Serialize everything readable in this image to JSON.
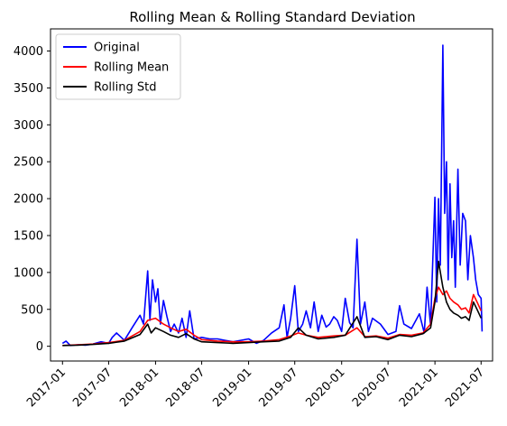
{
  "chart_data": {
    "type": "line",
    "title": "Rolling Mean & Rolling Standard Deviation",
    "xlabel": "",
    "ylabel": "",
    "x_range": [
      "2016-11-15",
      "2021-08-15"
    ],
    "ylim": [
      -200,
      4300
    ],
    "y_ticks": [
      0,
      500,
      1000,
      1500,
      2000,
      2500,
      3000,
      3500,
      4000
    ],
    "x_ticks": [
      "2017-01",
      "2017-07",
      "2018-01",
      "2018-07",
      "2019-01",
      "2019-07",
      "2020-01",
      "2020-07",
      "2021-01",
      "2021-07"
    ],
    "x_tick_label_rotation": 45,
    "grid": false,
    "legend_position": "upper-left",
    "colors": {
      "Original": "#0000ff",
      "Rolling Mean": "#ff0000",
      "Rolling Std": "#000000"
    },
    "series": [
      {
        "name": "Original",
        "x": [
          "2017-01-01",
          "2017-01-15",
          "2017-02-01",
          "2017-03-01",
          "2017-04-01",
          "2017-05-01",
          "2017-06-01",
          "2017-07-01",
          "2017-07-15",
          "2017-08-01",
          "2017-09-01",
          "2017-10-01",
          "2017-11-01",
          "2017-11-15",
          "2017-12-01",
          "2017-12-10",
          "2017-12-20",
          "2018-01-01",
          "2018-01-10",
          "2018-01-20",
          "2018-02-01",
          "2018-02-15",
          "2018-03-01",
          "2018-03-15",
          "2018-04-01",
          "2018-04-15",
          "2018-05-01",
          "2018-05-15",
          "2018-06-01",
          "2018-07-01",
          "2018-08-01",
          "2018-09-01",
          "2018-10-01",
          "2018-11-01",
          "2018-12-01",
          "2019-01-01",
          "2019-02-01",
          "2019-03-01",
          "2019-04-01",
          "2019-05-01",
          "2019-05-20",
          "2019-06-01",
          "2019-06-15",
          "2019-07-01",
          "2019-07-15",
          "2019-08-01",
          "2019-08-15",
          "2019-09-01",
          "2019-09-15",
          "2019-10-01",
          "2019-10-15",
          "2019-11-01",
          "2019-11-15",
          "2019-12-01",
          "2019-12-15",
          "2020-01-01",
          "2020-01-15",
          "2020-02-01",
          "2020-02-15",
          "2020-03-01",
          "2020-03-15",
          "2020-04-01",
          "2020-04-15",
          "2020-05-01",
          "2020-06-01",
          "2020-07-01",
          "2020-08-01",
          "2020-08-15",
          "2020-09-01",
          "2020-10-01",
          "2020-11-01",
          "2020-11-20",
          "2020-12-01",
          "2020-12-15",
          "2021-01-01",
          "2021-01-08",
          "2021-01-15",
          "2021-01-22",
          "2021-02-01",
          "2021-02-08",
          "2021-02-15",
          "2021-02-22",
          "2021-03-01",
          "2021-03-08",
          "2021-03-15",
          "2021-03-22",
          "2021-04-01",
          "2021-04-10",
          "2021-04-20",
          "2021-05-01",
          "2021-05-10",
          "2021-05-20",
          "2021-06-01",
          "2021-06-10",
          "2021-06-20",
          "2021-07-01",
          "2021-07-05"
        ],
        "values": [
          40,
          70,
          10,
          20,
          15,
          30,
          60,
          40,
          120,
          180,
          80,
          250,
          420,
          300,
          1020,
          350,
          900,
          600,
          780,
          300,
          620,
          400,
          200,
          300,
          180,
          380,
          120,
          480,
          100,
          120,
          100,
          100,
          80,
          60,
          80,
          100,
          40,
          80,
          180,
          250,
          560,
          120,
          380,
          820,
          200,
          300,
          480,
          250,
          600,
          200,
          420,
          260,
          300,
          400,
          350,
          200,
          650,
          320,
          250,
          1450,
          300,
          600,
          200,
          380,
          300,
          160,
          200,
          550,
          300,
          240,
          440,
          180,
          800,
          280,
          2020,
          600,
          2000,
          1100,
          4080,
          1800,
          2500,
          900,
          2200,
          1200,
          1700,
          800,
          2400,
          1100,
          1800,
          1700,
          900,
          1500,
          1200,
          900,
          700,
          650,
          200
        ]
      },
      {
        "name": "Rolling Mean",
        "x": [
          "2017-01-01",
          "2017-03-01",
          "2017-05-01",
          "2017-07-01",
          "2017-09-01",
          "2017-11-01",
          "2017-12-01",
          "2018-01-01",
          "2018-02-01",
          "2018-03-01",
          "2018-04-01",
          "2018-05-01",
          "2018-06-01",
          "2018-07-01",
          "2018-09-01",
          "2018-11-01",
          "2019-01-01",
          "2019-03-01",
          "2019-05-01",
          "2019-06-15",
          "2019-07-15",
          "2019-08-15",
          "2019-10-01",
          "2019-12-01",
          "2020-01-15",
          "2020-03-01",
          "2020-04-01",
          "2020-05-15",
          "2020-07-01",
          "2020-08-15",
          "2020-10-01",
          "2020-11-15",
          "2020-12-15",
          "2021-01-01",
          "2021-01-15",
          "2021-02-01",
          "2021-02-15",
          "2021-03-01",
          "2021-03-15",
          "2021-04-01",
          "2021-04-15",
          "2021-05-01",
          "2021-05-15",
          "2021-06-01",
          "2021-06-15",
          "2021-07-01"
        ],
        "values": [
          10,
          20,
          30,
          50,
          80,
          200,
          350,
          380,
          300,
          250,
          200,
          230,
          150,
          90,
          70,
          60,
          60,
          70,
          90,
          140,
          180,
          150,
          120,
          140,
          150,
          250,
          130,
          140,
          110,
          160,
          150,
          180,
          300,
          650,
          800,
          700,
          750,
          650,
          600,
          560,
          500,
          520,
          450,
          700,
          600,
          480
        ]
      },
      {
        "name": "Rolling Std",
        "x": [
          "2017-01-01",
          "2017-03-01",
          "2017-05-01",
          "2017-07-01",
          "2017-09-01",
          "2017-11-01",
          "2017-12-01",
          "2017-12-15",
          "2018-01-01",
          "2018-02-01",
          "2018-03-01",
          "2018-04-01",
          "2018-05-01",
          "2018-06-01",
          "2018-07-01",
          "2018-09-01",
          "2018-11-01",
          "2019-01-01",
          "2019-03-01",
          "2019-05-01",
          "2019-06-15",
          "2019-07-15",
          "2019-08-15",
          "2019-10-01",
          "2019-12-01",
          "2020-01-15",
          "2020-03-01",
          "2020-04-01",
          "2020-05-15",
          "2020-07-01",
          "2020-08-15",
          "2020-10-01",
          "2020-11-15",
          "2020-12-15",
          "2021-01-01",
          "2021-01-15",
          "2021-02-01",
          "2021-02-15",
          "2021-03-01",
          "2021-03-15",
          "2021-04-01",
          "2021-04-15",
          "2021-05-01",
          "2021-05-15",
          "2021-06-01",
          "2021-06-15",
          "2021-07-01"
        ],
        "values": [
          10,
          15,
          25,
          40,
          70,
          160,
          300,
          180,
          250,
          200,
          150,
          120,
          170,
          100,
          60,
          50,
          40,
          50,
          60,
          70,
          120,
          250,
          150,
          100,
          120,
          150,
          400,
          120,
          130,
          90,
          150,
          130,
          170,
          250,
          600,
          1150,
          800,
          600,
          500,
          450,
          420,
          380,
          400,
          350,
          600,
          500,
          380
        ]
      }
    ]
  }
}
